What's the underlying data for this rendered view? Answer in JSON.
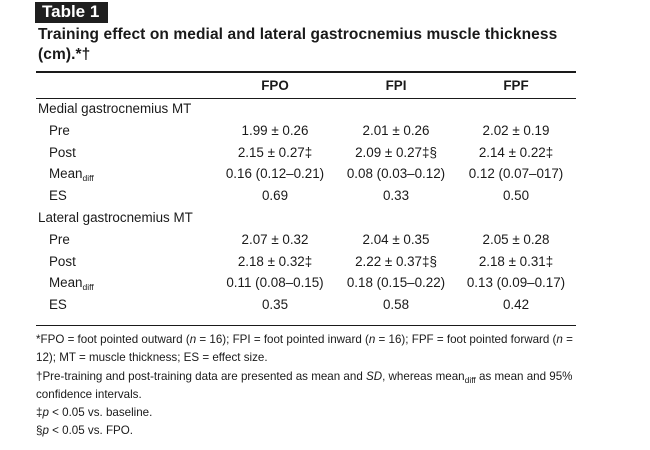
{
  "table_label": "Table 1",
  "title": "Training effect on medial and lateral gastrocnemius muscle thickness (cm).*†",
  "columns": [
    "FPO",
    "FPI",
    "FPF"
  ],
  "sections": [
    {
      "heading": "Medial gastrocnemius MT",
      "rows": [
        {
          "label": "Pre",
          "values": [
            "1.99 ± 0.26",
            "2.01 ± 0.26",
            "2.02 ± 0.19"
          ]
        },
        {
          "label": "Post",
          "values": [
            "2.15 ± 0.27‡",
            "2.09 ± 0.27‡§",
            "2.14 ± 0.22‡"
          ]
        },
        {
          "label": "Mean",
          "label_sub": "diff",
          "values": [
            "0.16 (0.12–0.21)",
            "0.08 (0.03–0.12)",
            "0.12 (0.07–017)"
          ]
        },
        {
          "label": "ES",
          "values": [
            "0.69",
            "0.33",
            "0.50"
          ]
        }
      ]
    },
    {
      "heading": "Lateral gastrocnemius MT",
      "rows": [
        {
          "label": "Pre",
          "values": [
            "2.07 ± 0.32",
            "2.04 ± 0.35",
            "2.05 ± 0.28"
          ]
        },
        {
          "label": "Post",
          "values": [
            "2.18 ± 0.32‡",
            "2.22 ± 0.37‡§",
            "2.18 ± 0.31‡"
          ]
        },
        {
          "label": "Mean",
          "label_sub": "diff",
          "values": [
            "0.11 (0.08–0.15)",
            "0.18 (0.15–0.22)",
            "0.13 (0.09–0.17)"
          ]
        },
        {
          "label": "ES",
          "values": [
            "0.35",
            "0.58",
            "0.42"
          ]
        }
      ]
    }
  ],
  "footnotes": {
    "abbrev": {
      "a": "*FPO = foot pointed outward (",
      "b": "n",
      "c": " = 16); FPI = foot pointed inward (",
      "d": "n",
      "e": " = 16); FPF = foot pointed forward (",
      "f": "n",
      "g": " = 12); MT = muscle thickness; ES = effect size."
    },
    "data_note": {
      "a": "†Pre-training and post-training data are presented as mean and ",
      "b": "SD",
      "c": ", whereas mean",
      "sub": "diff",
      "d": " as mean and 95% confidence intervals."
    },
    "baseline": {
      "a": "‡",
      "b": "p",
      "c": " < 0.05 vs. baseline."
    },
    "fpo": {
      "a": "§",
      "b": "p",
      "c": " < 0.05 vs. FPO."
    }
  }
}
